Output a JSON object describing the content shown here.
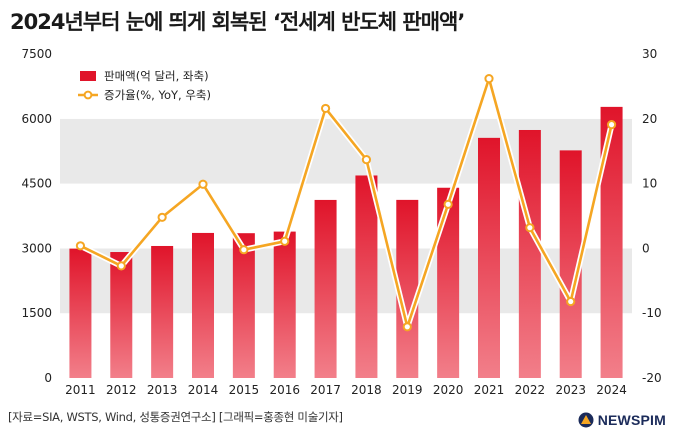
{
  "header": {
    "title": "2024년부터 눈에 띄게 회복된 ‘전세계 반도체 판매액’"
  },
  "footer": {
    "source": "[자료=SIA, WSTS, Wind, 성통증권연구소] [그래픽=홍종현 미술기자]",
    "brand": "NEWSPIM"
  },
  "chart_data": {
    "type": "bar",
    "categories": [
      "2011",
      "2012",
      "2013",
      "2014",
      "2015",
      "2016",
      "2017",
      "2018",
      "2019",
      "2020",
      "2021",
      "2022",
      "2023",
      "2024"
    ],
    "series": [
      {
        "name": "판매액(억 달러, 좌축)",
        "type": "bar",
        "axis": "left",
        "color": "#e0142a",
        "values": [
          2995,
          2916,
          3056,
          3358,
          3352,
          3389,
          4122,
          4688,
          4123,
          4404,
          5559,
          5741,
          5269,
          6276
        ]
      },
      {
        "name": "증가율(%, YoY, 우축)",
        "type": "line",
        "axis": "right",
        "color": "#f5a623",
        "values": [
          0.4,
          -2.7,
          4.8,
          9.9,
          -0.2,
          1.1,
          21.6,
          13.7,
          -12.1,
          6.8,
          26.2,
          3.2,
          -8.2,
          19.1
        ]
      }
    ],
    "y_left": {
      "ylim": [
        0,
        7500
      ],
      "ticks": [
        0,
        1500,
        3000,
        4500,
        6000,
        7500
      ]
    },
    "y_right": {
      "ylim": [
        -20,
        30
      ],
      "ticks": [
        -20,
        -10,
        0,
        10,
        20,
        30
      ]
    },
    "legend_position": "top-left",
    "grid": "alternating horizontal bands"
  }
}
